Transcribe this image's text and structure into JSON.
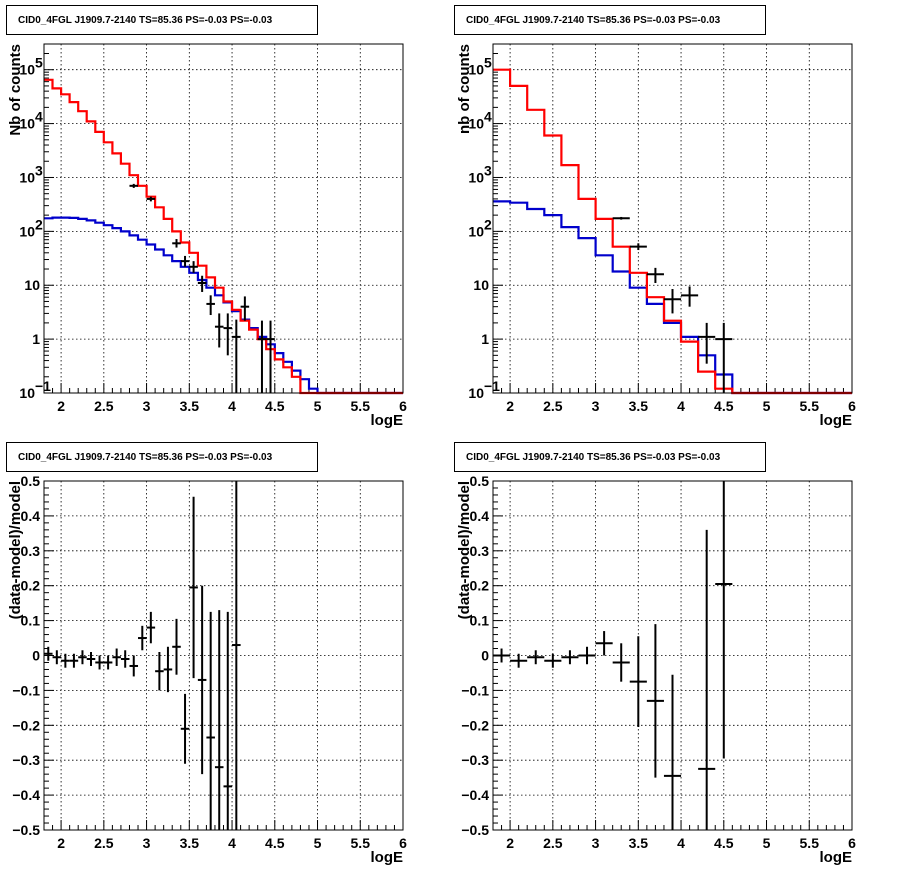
{
  "colors": {
    "total_model": "#ff0000",
    "source_model": "#0000cc",
    "data": "#000000"
  },
  "chart_data": [
    {
      "id": "counts-left",
      "type": "line",
      "title": "CID0_4FGL J1909.7-2140 TS=85.36 PS=-0.03 PS=-0.03",
      "xlabel": "logE",
      "ylabel": "Nb of counts",
      "xlim": [
        1.8,
        6.0
      ],
      "ylim": [
        0.1,
        300000
      ],
      "yscale": "log",
      "grid": true,
      "x_ticks": [
        {
          "v": 2,
          "label": "2"
        },
        {
          "v": 2.5,
          "label": "2.5"
        },
        {
          "v": 3,
          "label": "3"
        },
        {
          "v": 3.5,
          "label": "3.5"
        },
        {
          "v": 4,
          "label": "4"
        },
        {
          "v": 4.5,
          "label": "4.5"
        },
        {
          "v": 5,
          "label": "5"
        },
        {
          "v": 5.5,
          "label": "5.5"
        },
        {
          "v": 6,
          "label": "6"
        }
      ],
      "y_ticks": [
        {
          "v": 0.1,
          "base": "10",
          "exp": "−1"
        },
        {
          "v": 1,
          "base": "1",
          "exp": ""
        },
        {
          "v": 10,
          "base": "10",
          "exp": ""
        },
        {
          "v": 100,
          "base": "10",
          "exp": "2"
        },
        {
          "v": 1000,
          "base": "10",
          "exp": "3"
        },
        {
          "v": 10000,
          "base": "10",
          "exp": "4"
        },
        {
          "v": 100000,
          "base": "10",
          "exp": "5"
        }
      ],
      "bin_width": 0.1,
      "series": [
        {
          "role": "total_model",
          "bin_start": 1.8,
          "values": [
            65000,
            45000,
            35000,
            25000,
            17000,
            11000,
            7000,
            4500,
            2800,
            1800,
            1100,
            700,
            440,
            280,
            170,
            100,
            62,
            40,
            23,
            14,
            9,
            5,
            3.5,
            2.2,
            1.5,
            1.0,
            0.65,
            0.42,
            0.3,
            0.2,
            0.1,
            0.1,
            0.1,
            0.1,
            0.1,
            0.1,
            0.1,
            0.1,
            0.1,
            0.1,
            0.1,
            0.1
          ]
        },
        {
          "role": "source_model",
          "bin_start": 1.8,
          "values": [
            175,
            180,
            180,
            178,
            170,
            160,
            145,
            130,
            115,
            100,
            84,
            70,
            57,
            46,
            36,
            28,
            22,
            17,
            12.5,
            9,
            6.5,
            4.8,
            3.3,
            2.3,
            1.6,
            1.1,
            0.8,
            0.55,
            0.38,
            0.26,
            0.18,
            0.12,
            0.1,
            0.1,
            0.1,
            0.1,
            0.1,
            0.1,
            0.1,
            0.1,
            0.1,
            0.1
          ]
        },
        {
          "role": "data",
          "points": [
            {
              "x": 2.85,
              "y": 700,
              "lo": 640,
              "hi": 760
            },
            {
              "x": 3.05,
              "y": 400,
              "lo": 360,
              "hi": 440
            },
            {
              "x": 3.35,
              "y": 60,
              "lo": 50,
              "hi": 72
            },
            {
              "x": 3.45,
              "y": 28,
              "lo": 22,
              "hi": 35
            },
            {
              "x": 3.55,
              "y": 22,
              "lo": 17,
              "hi": 28
            },
            {
              "x": 3.65,
              "y": 11,
              "lo": 7.5,
              "hi": 15
            },
            {
              "x": 3.75,
              "y": 4.5,
              "lo": 2.8,
              "hi": 6.5
            },
            {
              "x": 3.85,
              "y": 1.7,
              "lo": 0.7,
              "hi": 3.0
            },
            {
              "x": 3.95,
              "y": 1.6,
              "lo": 0.5,
              "hi": 3.0
            },
            {
              "x": 4.05,
              "y": 1.1,
              "lo": 0.1,
              "hi": 2.3
            },
            {
              "x": 4.15,
              "y": 4.0,
              "lo": 2.2,
              "hi": 6.2
            },
            {
              "x": 4.35,
              "y": 1.0,
              "lo": 0.1,
              "hi": 2.2
            },
            {
              "x": 4.45,
              "y": 1.0,
              "lo": 0.1,
              "hi": 2.2
            }
          ]
        }
      ]
    },
    {
      "id": "counts-right",
      "type": "line",
      "title": "CID0_4FGL J1909.7-2140 TS=85.36 PS=-0.03 PS=-0.03",
      "xlabel": "logE",
      "ylabel": "nb of counts",
      "xlim": [
        1.8,
        6.0
      ],
      "ylim": [
        0.1,
        300000
      ],
      "yscale": "log",
      "grid": true,
      "x_ticks": [
        {
          "v": 2,
          "label": "2"
        },
        {
          "v": 2.5,
          "label": "2.5"
        },
        {
          "v": 3,
          "label": "3"
        },
        {
          "v": 3.5,
          "label": "3.5"
        },
        {
          "v": 4,
          "label": "4"
        },
        {
          "v": 4.5,
          "label": "4.5"
        },
        {
          "v": 5,
          "label": "5"
        },
        {
          "v": 5.5,
          "label": "5.5"
        },
        {
          "v": 6,
          "label": "6"
        }
      ],
      "y_ticks": [
        {
          "v": 0.1,
          "base": "10",
          "exp": "−1"
        },
        {
          "v": 1,
          "base": "1",
          "exp": ""
        },
        {
          "v": 10,
          "base": "10",
          "exp": ""
        },
        {
          "v": 100,
          "base": "10",
          "exp": "2"
        },
        {
          "v": 1000,
          "base": "10",
          "exp": "3"
        },
        {
          "v": 10000,
          "base": "10",
          "exp": "4"
        },
        {
          "v": 100000,
          "base": "10",
          "exp": "5"
        }
      ],
      "bin_width": 0.2,
      "series": [
        {
          "role": "total_model",
          "bin_start": 1.8,
          "values": [
            100000,
            50000,
            18000,
            6000,
            1700,
            400,
            170,
            52,
            17,
            6,
            2.2,
            0.9,
            0.25,
            0.12,
            0.1,
            0.1,
            0.1,
            0.1,
            0.1,
            0.1,
            0.1
          ]
        },
        {
          "role": "source_model",
          "bin_start": 1.8,
          "values": [
            360,
            340,
            260,
            200,
            120,
            75,
            36,
            18,
            9,
            4.5,
            2.0,
            1.1,
            0.5,
            0.22,
            0.1,
            0.1,
            0.1,
            0.1,
            0.1,
            0.1,
            0.1
          ]
        },
        {
          "role": "data",
          "points": [
            {
              "x": 3.3,
              "y": 175,
              "lo": 165,
              "hi": 185
            },
            {
              "x": 3.5,
              "y": 52,
              "lo": 45,
              "hi": 60
            },
            {
              "x": 3.7,
              "y": 16,
              "lo": 11,
              "hi": 21
            },
            {
              "x": 3.9,
              "y": 5.5,
              "lo": 3.0,
              "hi": 8.5
            },
            {
              "x": 4.1,
              "y": 6.5,
              "lo": 4.0,
              "hi": 9.5
            },
            {
              "x": 4.3,
              "y": 1.1,
              "lo": 0.35,
              "hi": 2.0
            },
            {
              "x": 4.5,
              "y": 1.0,
              "lo": 0.1,
              "hi": 2.0
            }
          ]
        }
      ]
    },
    {
      "id": "residuals-left",
      "type": "scatter",
      "title": "CID0_4FGL J1909.7-2140 TS=85.36 PS=-0.03 PS=-0.03",
      "xlabel": "logE",
      "ylabel": "(data-model)/model",
      "xlim": [
        1.8,
        6.0
      ],
      "ylim": [
        -0.5,
        0.5
      ],
      "yscale": "linear",
      "grid": true,
      "x_ticks": [
        {
          "v": 2,
          "label": "2"
        },
        {
          "v": 2.5,
          "label": "2.5"
        },
        {
          "v": 3,
          "label": "3"
        },
        {
          "v": 3.5,
          "label": "3.5"
        },
        {
          "v": 4,
          "label": "4"
        },
        {
          "v": 4.5,
          "label": "4.5"
        },
        {
          "v": 5,
          "label": "5"
        },
        {
          "v": 5.5,
          "label": "5.5"
        },
        {
          "v": 6,
          "label": "6"
        }
      ],
      "y_ticks": [
        {
          "v": -0.5,
          "label": "−0.5"
        },
        {
          "v": -0.4,
          "label": "−0.4"
        },
        {
          "v": -0.3,
          "label": "−0.3"
        },
        {
          "v": -0.2,
          "label": "−0.2"
        },
        {
          "v": -0.1,
          "label": "−0.1"
        },
        {
          "v": 0,
          "label": "0"
        },
        {
          "v": 0.1,
          "label": "0.1"
        },
        {
          "v": 0.2,
          "label": "0.2"
        },
        {
          "v": 0.3,
          "label": "0.3"
        },
        {
          "v": 0.4,
          "label": "0.4"
        },
        {
          "v": 0.5,
          "label": "0.5"
        }
      ],
      "bin_width": 0.1,
      "points": [
        {
          "x": 1.85,
          "y": 0.005,
          "err": 0.02
        },
        {
          "x": 1.95,
          "y": -0.005,
          "err": 0.02
        },
        {
          "x": 2.05,
          "y": -0.015,
          "err": 0.02
        },
        {
          "x": 2.15,
          "y": -0.015,
          "err": 0.02
        },
        {
          "x": 2.25,
          "y": -0.005,
          "err": 0.02
        },
        {
          "x": 2.35,
          "y": -0.01,
          "err": 0.02
        },
        {
          "x": 2.45,
          "y": -0.02,
          "err": 0.02
        },
        {
          "x": 2.55,
          "y": -0.02,
          "err": 0.02
        },
        {
          "x": 2.65,
          "y": -0.005,
          "err": 0.025
        },
        {
          "x": 2.75,
          "y": -0.01,
          "err": 0.025
        },
        {
          "x": 2.85,
          "y": -0.03,
          "err": 0.03
        },
        {
          "x": 2.95,
          "y": 0.05,
          "err": 0.035
        },
        {
          "x": 3.05,
          "y": 0.08,
          "err": 0.045
        },
        {
          "x": 3.15,
          "y": -0.045,
          "err": 0.055
        },
        {
          "x": 3.25,
          "y": -0.04,
          "err": 0.065
        },
        {
          "x": 3.35,
          "y": 0.025,
          "err": 0.08
        },
        {
          "x": 3.45,
          "y": -0.21,
          "err": 0.1
        },
        {
          "x": 3.55,
          "y": 0.195,
          "err": 0.26
        },
        {
          "x": 3.65,
          "y": -0.07,
          "err": 0.27
        },
        {
          "x": 3.75,
          "y": -0.235,
          "err": 0.36
        },
        {
          "x": 3.85,
          "y": -0.32,
          "err": 0.45
        },
        {
          "x": 3.95,
          "y": -0.375,
          "err": 0.5
        },
        {
          "x": 4.05,
          "y": 0.03,
          "err": 0.6
        }
      ]
    },
    {
      "id": "residuals-right",
      "type": "scatter",
      "title": "CID0_4FGL J1909.7-2140 TS=85.36 PS=-0.03 PS=-0.03",
      "xlabel": "logE",
      "ylabel": "(data-model)/model",
      "xlim": [
        1.8,
        6.0
      ],
      "ylim": [
        -0.5,
        0.5
      ],
      "yscale": "linear",
      "grid": true,
      "x_ticks": [
        {
          "v": 2,
          "label": "2"
        },
        {
          "v": 2.5,
          "label": "2.5"
        },
        {
          "v": 3,
          "label": "3"
        },
        {
          "v": 3.5,
          "label": "3.5"
        },
        {
          "v": 4,
          "label": "4"
        },
        {
          "v": 4.5,
          "label": "4.5"
        },
        {
          "v": 5,
          "label": "5"
        },
        {
          "v": 5.5,
          "label": "5.5"
        },
        {
          "v": 6,
          "label": "6"
        }
      ],
      "y_ticks": [
        {
          "v": -0.5,
          "label": "−0.5"
        },
        {
          "v": -0.4,
          "label": "−0.4"
        },
        {
          "v": -0.3,
          "label": "−0.3"
        },
        {
          "v": -0.2,
          "label": "−0.2"
        },
        {
          "v": -0.1,
          "label": "−0.1"
        },
        {
          "v": 0,
          "label": "0"
        },
        {
          "v": 0.1,
          "label": "0.1"
        },
        {
          "v": 0.2,
          "label": "0.2"
        },
        {
          "v": 0.3,
          "label": "0.3"
        },
        {
          "v": 0.4,
          "label": "0.4"
        },
        {
          "v": 0.5,
          "label": "0.5"
        }
      ],
      "bin_width": 0.2,
      "points": [
        {
          "x": 1.9,
          "y": 0.0,
          "err": 0.02
        },
        {
          "x": 2.1,
          "y": -0.015,
          "err": 0.02
        },
        {
          "x": 2.3,
          "y": -0.005,
          "err": 0.02
        },
        {
          "x": 2.5,
          "y": -0.015,
          "err": 0.02
        },
        {
          "x": 2.7,
          "y": -0.005,
          "err": 0.02
        },
        {
          "x": 2.9,
          "y": 0.0,
          "err": 0.025
        },
        {
          "x": 3.1,
          "y": 0.035,
          "err": 0.035
        },
        {
          "x": 3.3,
          "y": -0.02,
          "err": 0.055
        },
        {
          "x": 3.5,
          "y": -0.075,
          "err": 0.13
        },
        {
          "x": 3.7,
          "y": -0.13,
          "err": 0.22
        },
        {
          "x": 3.9,
          "y": -0.345,
          "err": 0.29
        },
        {
          "x": 4.3,
          "y": -0.325,
          "err": 0.685
        },
        {
          "x": 4.5,
          "y": 0.205,
          "err": 0.5
        }
      ]
    }
  ]
}
